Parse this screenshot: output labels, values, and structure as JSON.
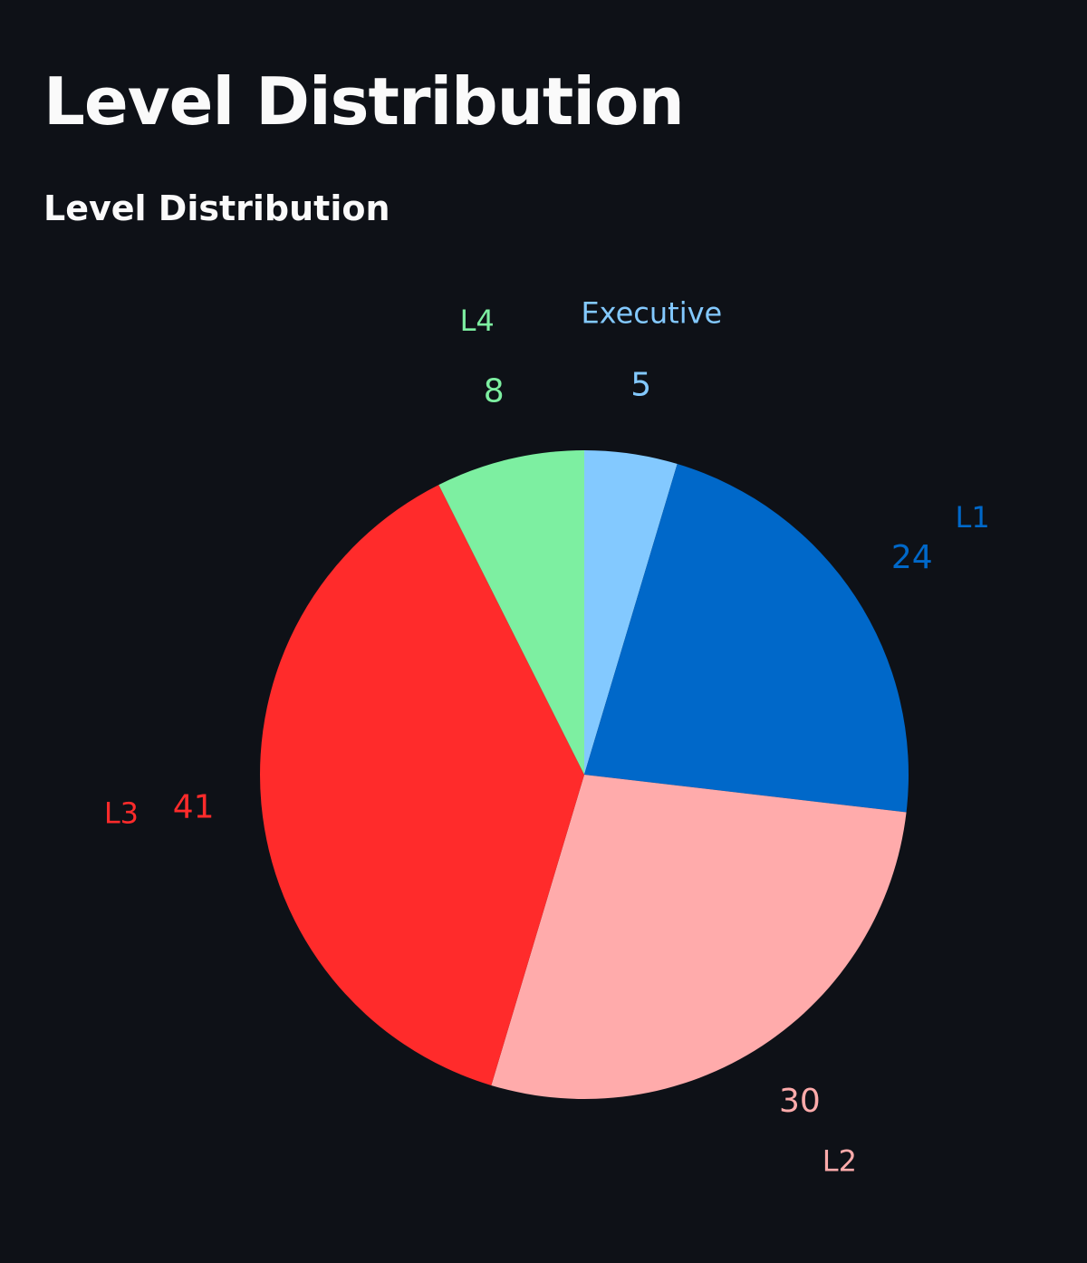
{
  "page": {
    "title": "Level Distribution"
  },
  "chart_data": {
    "type": "pie",
    "title": "Level Distribution",
    "categories": [
      "Executive",
      "L1",
      "L2",
      "L3",
      "L4"
    ],
    "values": [
      5,
      24,
      30,
      41,
      8
    ],
    "colors": [
      "#83c9ff",
      "#0068c9",
      "#ffabab",
      "#ff2b2b",
      "#7defa1"
    ],
    "start": "top",
    "direction": "clockwise",
    "labels_outside": true
  }
}
